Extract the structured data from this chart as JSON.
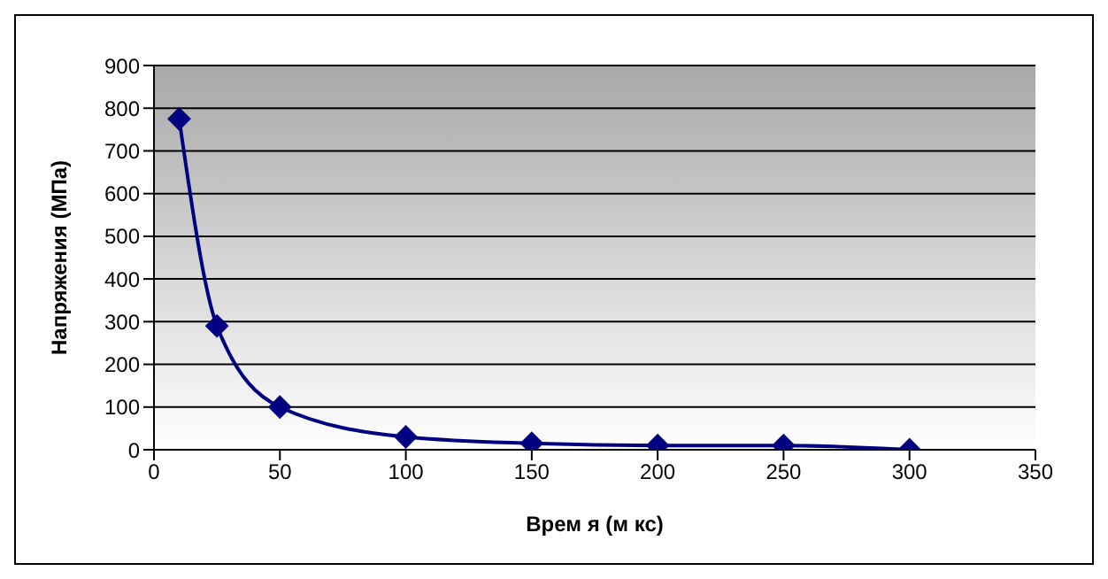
{
  "chart_data": {
    "type": "line",
    "xlabel": "Врем я (м кс)",
    "ylabel": "Напряжения (МПа)",
    "x": [
      10,
      25,
      50,
      100,
      150,
      200,
      250,
      300
    ],
    "series": [
      {
        "color": "#000080",
        "values": [
          775,
          290,
          100,
          30,
          15,
          10,
          10,
          0
        ]
      }
    ],
    "xlim": [
      0,
      350
    ],
    "xticks": [
      0,
      50,
      100,
      150,
      200,
      250,
      300,
      350
    ],
    "ylim": [
      0,
      900
    ],
    "yticks": [
      0,
      100,
      200,
      300,
      400,
      500,
      600,
      700,
      800,
      900
    ],
    "grid": "y",
    "legend": false,
    "marker": "diamond",
    "line_style": "solid"
  }
}
